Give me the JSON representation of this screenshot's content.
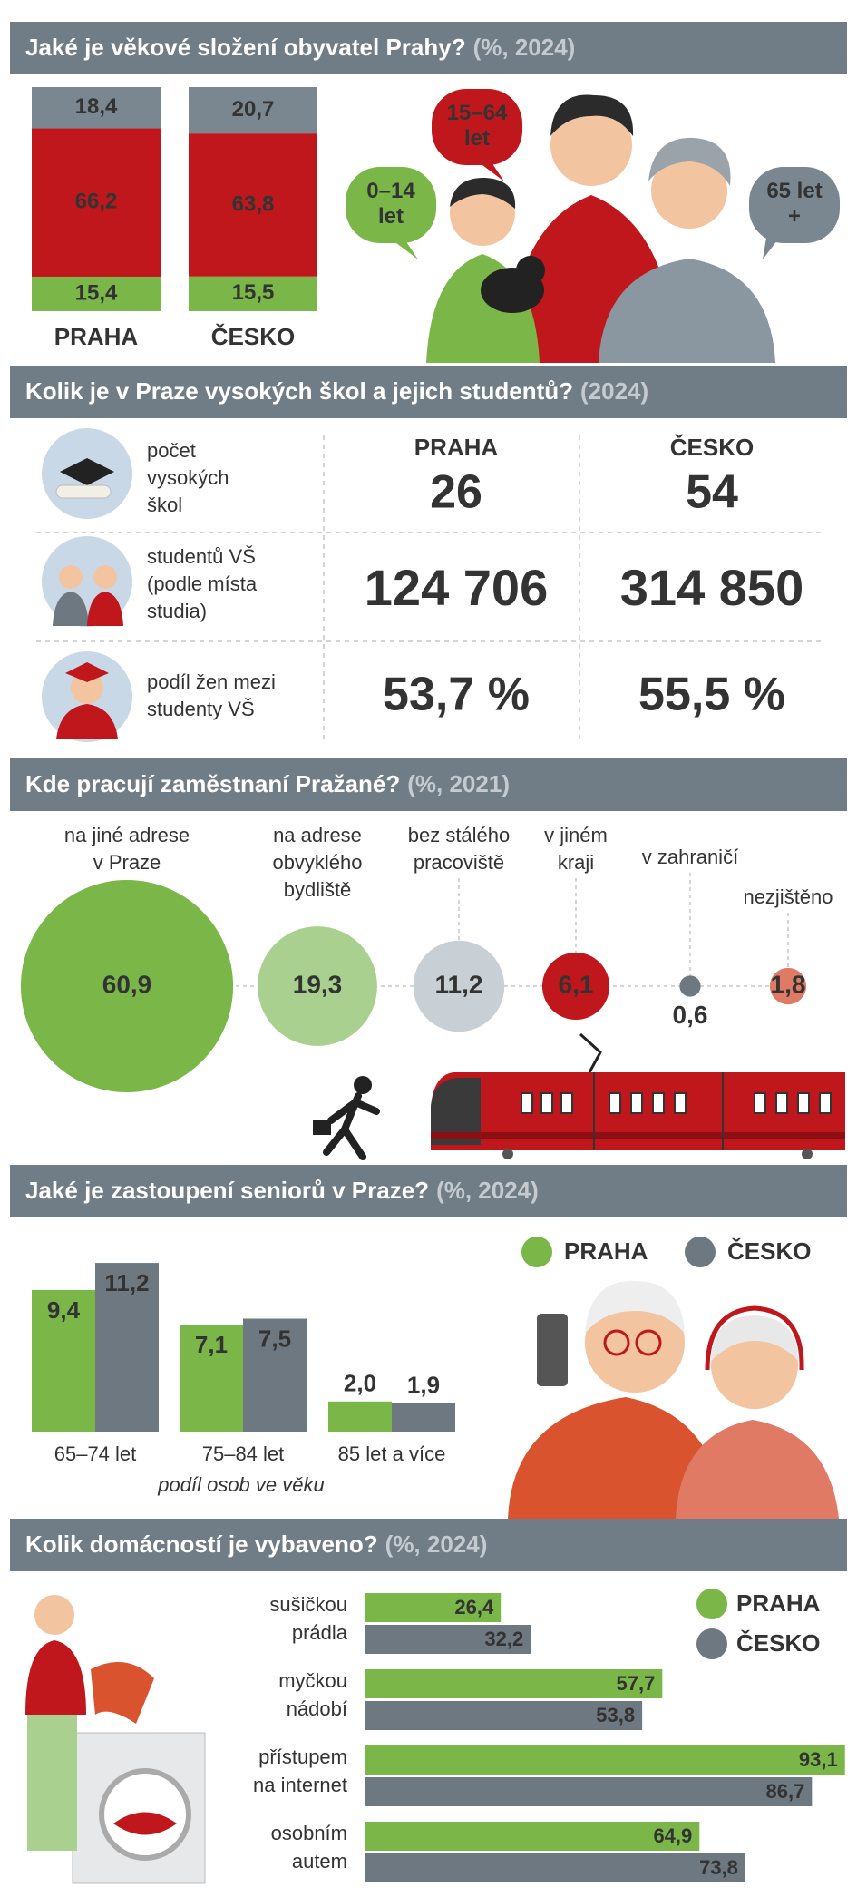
{
  "chart_data": [
    {
      "type": "stacked_bar",
      "title": "Jaké je věkové složení obyvatel Prahy?",
      "subtitle": "(%, 2024)",
      "categories": [
        "PRAHA",
        "ČESKO"
      ],
      "series": [
        {
          "color": "#7ab648",
          "values": [
            15.4,
            15.5
          ],
          "value_labels": [
            "15,4",
            "15,5"
          ]
        },
        {
          "color": "#c0171c",
          "values": [
            66.2,
            63.8
          ],
          "value_labels": [
            "66,2",
            "63,8"
          ]
        },
        {
          "color": "#7b8790",
          "values": [
            18.4,
            20.7
          ],
          "value_labels": [
            "18,4",
            "20,7"
          ]
        }
      ],
      "annotations": [
        [
          "0–14",
          "let"
        ],
        [
          "15–64",
          "let"
        ],
        [
          "65 let",
          "+"
        ]
      ]
    },
    {
      "type": "bubble",
      "title": "Kde pracují zaměstnaní Pražané?",
      "subtitle": "(%, 2021)",
      "categories": [
        [
          "na jiné adrese",
          "v Praze"
        ],
        [
          "na adrese",
          "obvyklého",
          "bydliště"
        ],
        [
          "bez stálého",
          "pracoviště"
        ],
        [
          "v jiném",
          "kraji"
        ],
        [
          "v zahraničí"
        ],
        [
          "nezjištěno"
        ]
      ],
      "values": [
        60.9,
        19.3,
        11.2,
        6.1,
        0.6,
        1.8
      ],
      "value_labels": [
        "60,9",
        "19,3",
        "11,2",
        "6,1",
        "0,6",
        "1,8"
      ],
      "colors": [
        "#7ab648",
        "#a9d08e",
        "#c8d0d5",
        "#c0171c",
        "#6d7880",
        "#e07a65"
      ]
    },
    {
      "type": "bar",
      "title": "Jaké je zastoupení seniorů v Praze?",
      "subtitle": "(%, 2024)",
      "categories": [
        "65–74 let",
        "75–84 let",
        "85 let a více"
      ],
      "xlabel": "podíl osob ve věku",
      "series": [
        {
          "name": "PRAHA",
          "color": "#7ab648",
          "values": [
            9.4,
            7.1,
            2.0
          ],
          "value_labels": [
            "9,4",
            "7,1",
            "2,0"
          ]
        },
        {
          "name": "ČESKO",
          "color": "#6d7880",
          "values": [
            11.2,
            7.5,
            1.9
          ],
          "value_labels": [
            "11,2",
            "7,5",
            "1,9"
          ]
        }
      ]
    },
    {
      "type": "hbar",
      "title": "Kolik domácností je vybaveno?",
      "subtitle": "(%, 2024)",
      "categories": [
        [
          "sušičkou",
          "prádla"
        ],
        [
          "myčkou",
          "nádobí"
        ],
        [
          "přístupem",
          "na internet"
        ],
        [
          "osobním",
          "autem"
        ]
      ],
      "series": [
        {
          "name": "PRAHA",
          "color": "#7ab648",
          "values": [
            26.4,
            57.7,
            93.1,
            64.9
          ],
          "value_labels": [
            "26,4",
            "57,7",
            "93,1",
            "64,9"
          ]
        },
        {
          "name": "ČESKO",
          "color": "#6d7880",
          "values": [
            32.2,
            53.8,
            86.7,
            73.8
          ],
          "value_labels": [
            "32,2",
            "53,8",
            "86,7",
            "73,8"
          ]
        }
      ]
    }
  ],
  "table": {
    "title": "Kolik je v Praze vysokých škol a jejich studentů?",
    "subtitle": "(2024)",
    "columns": [
      "PRAHA",
      "ČESKO"
    ],
    "rows": [
      {
        "label": [
          "počet",
          "vysokých",
          "škol"
        ],
        "values": [
          "26",
          "54"
        ]
      },
      {
        "label": [
          "studentů VŠ",
          "(podle místa",
          "studia)"
        ],
        "values": [
          "124 706",
          "314 850"
        ]
      },
      {
        "label": [
          "podíl žen mezi",
          "studenty VŠ"
        ],
        "values": [
          "53,7 %",
          "55,5 %"
        ]
      }
    ]
  }
}
